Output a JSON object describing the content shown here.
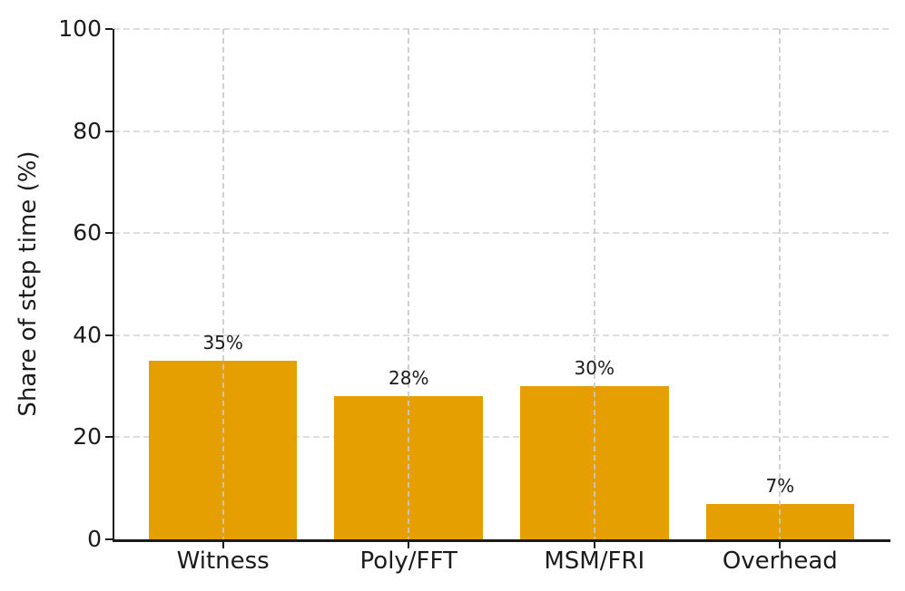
{
  "chart_data": {
    "type": "bar",
    "title": "",
    "categories": [
      "Witness",
      "Poly/FFT",
      "MSM/FRI",
      "Overhead"
    ],
    "values": [
      35,
      28,
      30,
      7
    ],
    "value_labels": [
      "35%",
      "28%",
      "30%",
      "7%"
    ],
    "xlabel": "",
    "ylabel": "Share of step time (%)",
    "ylim": [
      0,
      100
    ],
    "yticks": [
      0,
      20,
      40,
      60,
      80,
      100
    ],
    "grid": "dashed horizontal and vertical gridlines",
    "legend_position": "none",
    "bar_color": "#E69F00",
    "axis_color": "#1b1b1b",
    "h_grid_color": "#dedede",
    "v_grid_color": "#c9c9c9",
    "background": "#ffffff"
  }
}
